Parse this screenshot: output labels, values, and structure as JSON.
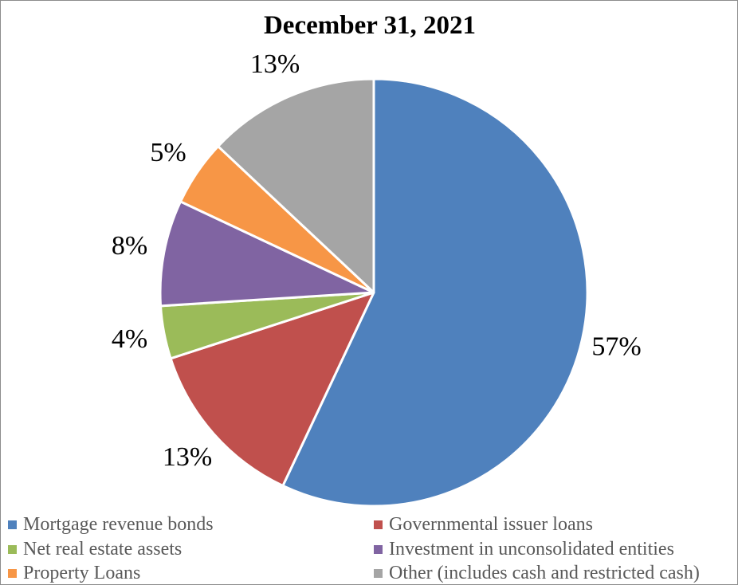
{
  "chart_data": {
    "type": "pie",
    "title": "December 31, 2021",
    "slices": [
      {
        "name": "Mortgage revenue bonds",
        "value": 57,
        "label": "57%",
        "color": "#4f81bd"
      },
      {
        "name": "Governmental issuer loans",
        "value": 13,
        "label": "13%",
        "color": "#c0504d"
      },
      {
        "name": "Net real estate assets",
        "value": 4,
        "label": "4%",
        "color": "#9bbb59"
      },
      {
        "name": "Investment in unconsolidated entities",
        "value": 8,
        "label": "8%",
        "color": "#8064a2"
      },
      {
        "name": "Property Loans",
        "value": 5,
        "label": "5%",
        "color": "#f79646"
      },
      {
        "name": "Other (includes cash and restricted cash)",
        "value": 13,
        "label": "13%",
        "color": "#a5a5a5"
      }
    ],
    "legend_placement": "bottom"
  }
}
